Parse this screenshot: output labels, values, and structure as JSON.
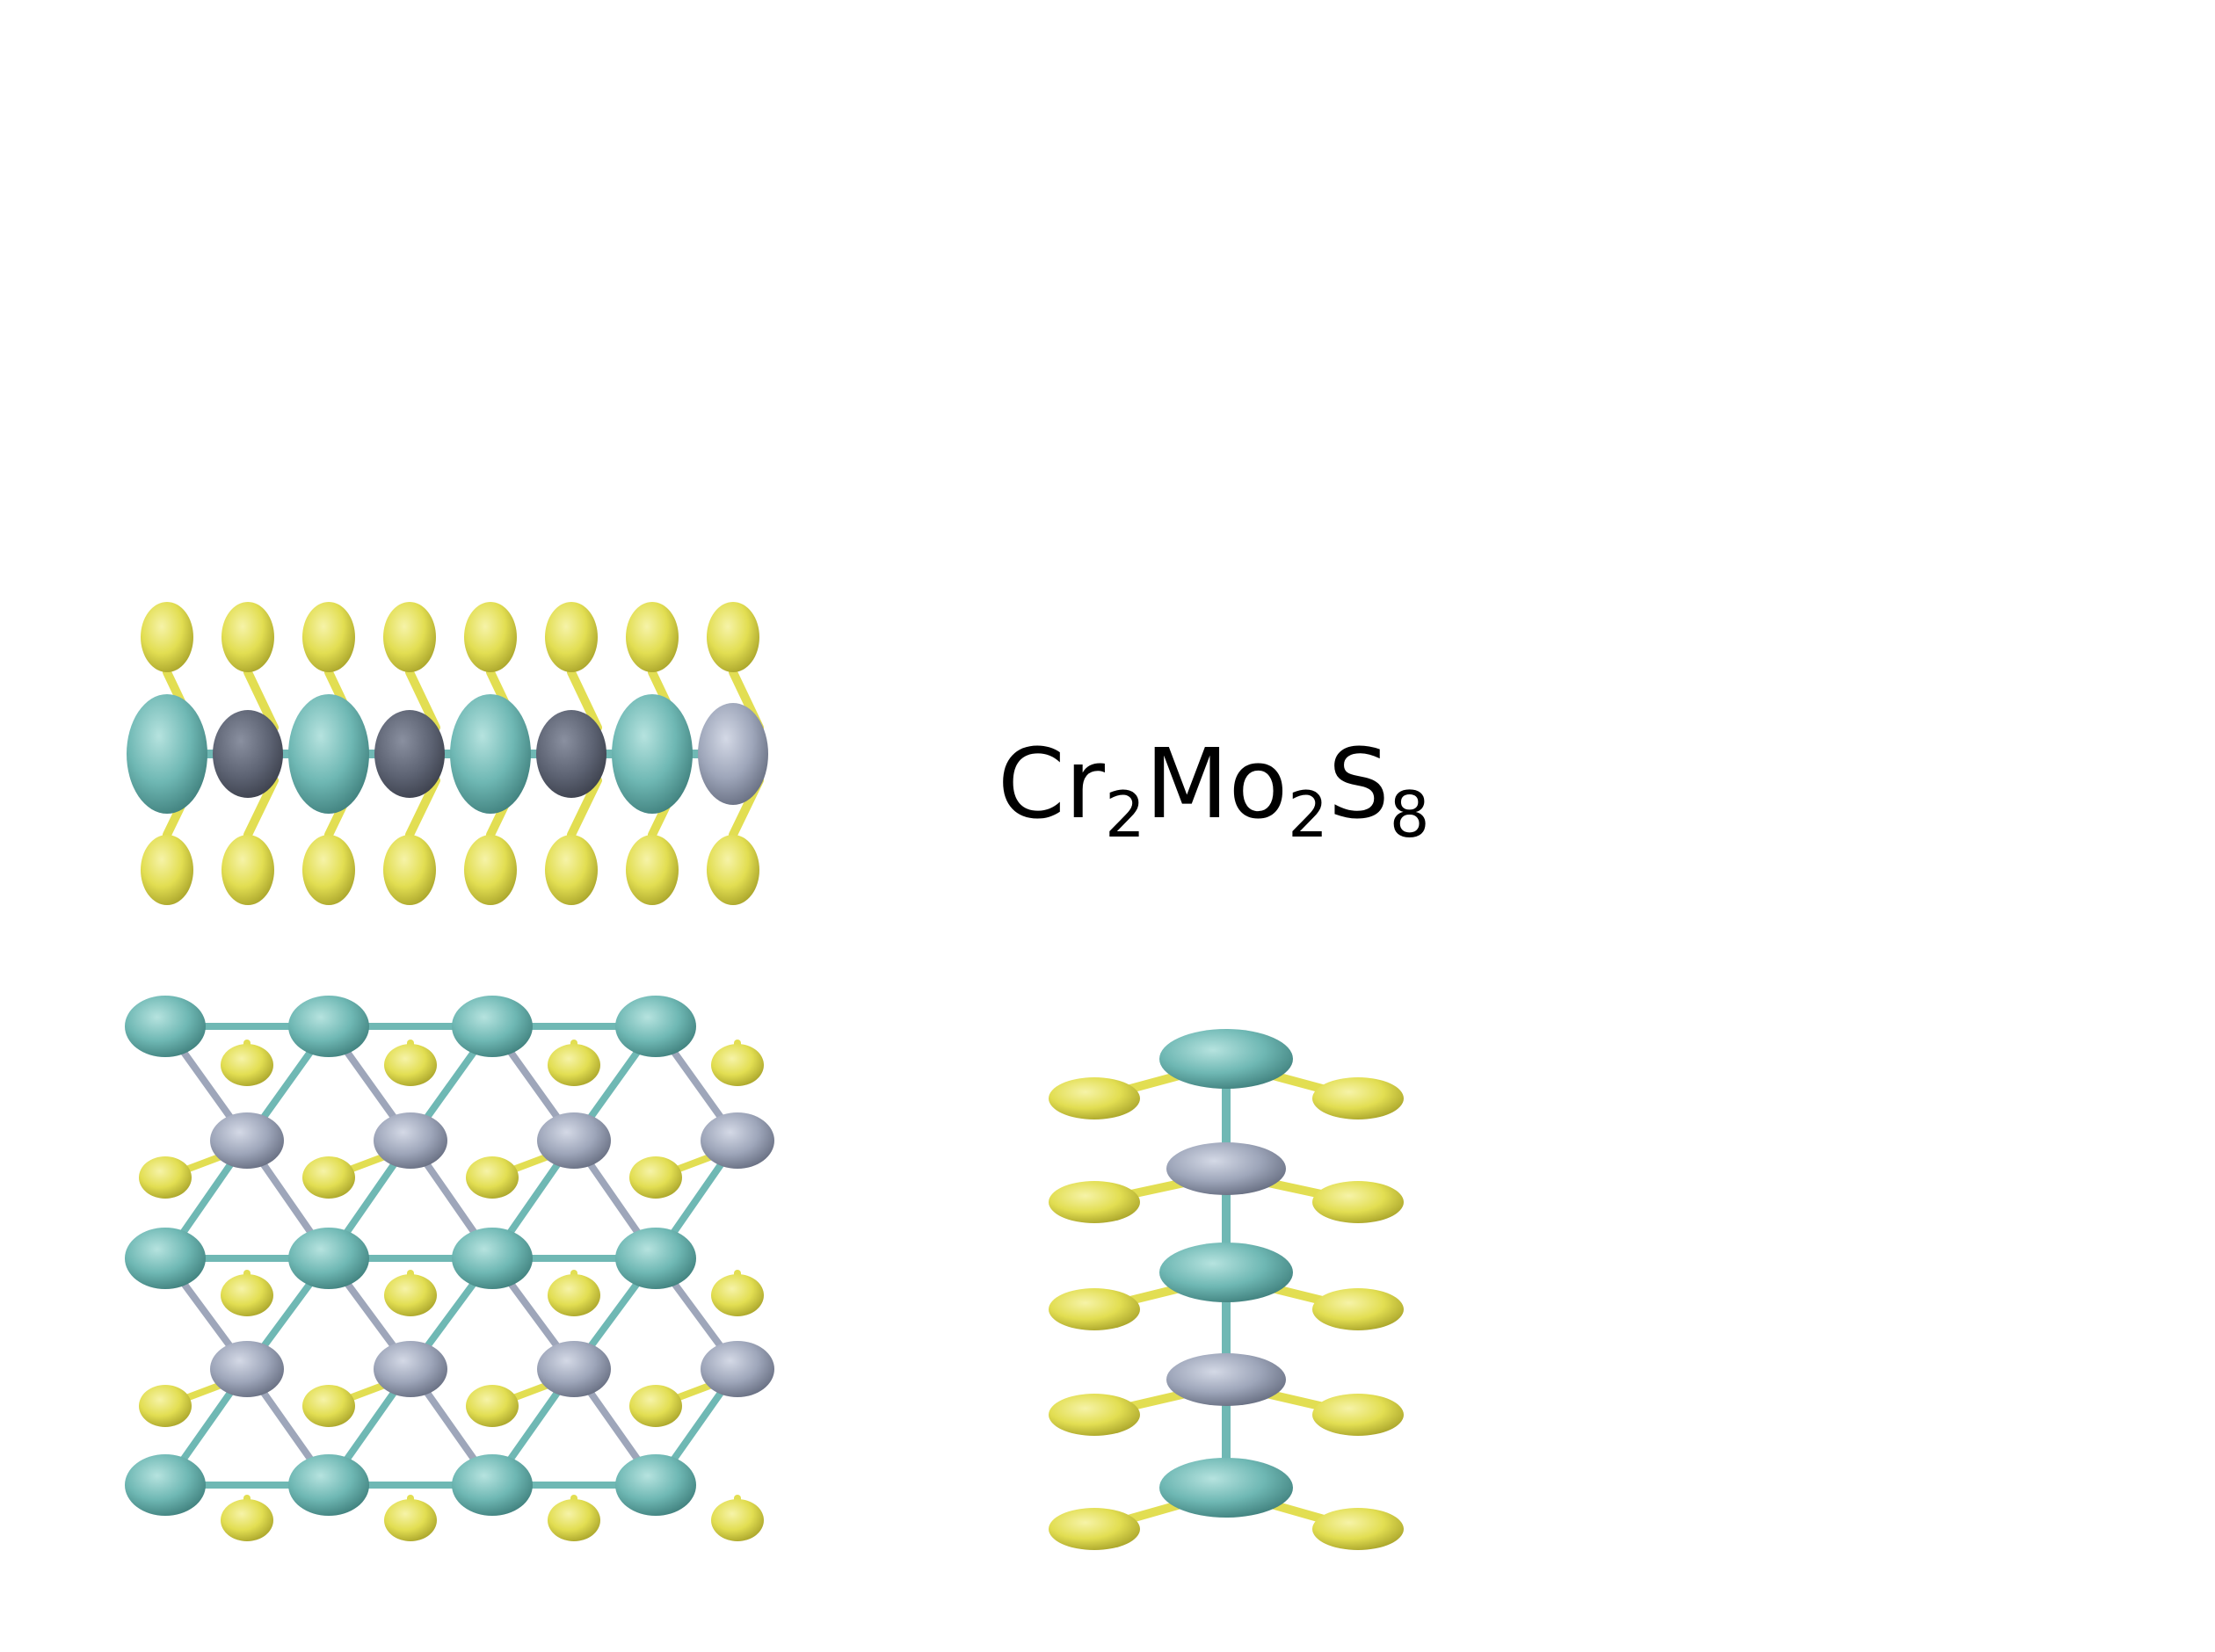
{
  "formula": {
    "parts": [
      {
        "text": "Cr",
        "sub": "2"
      },
      {
        "text": "Mo",
        "sub": "2"
      },
      {
        "text": "S",
        "sub": "8"
      }
    ]
  },
  "colors": {
    "background": "#ffffff",
    "chromium": "#6fb8b4",
    "molybdenum": "#9ea6ba",
    "molybdenum_dark": "#5c6272",
    "sulfur": "#e2de52",
    "text": "#000000"
  },
  "views": {
    "top": {
      "label": ""
    },
    "side": {
      "label": ""
    },
    "end": {
      "label": ""
    }
  }
}
